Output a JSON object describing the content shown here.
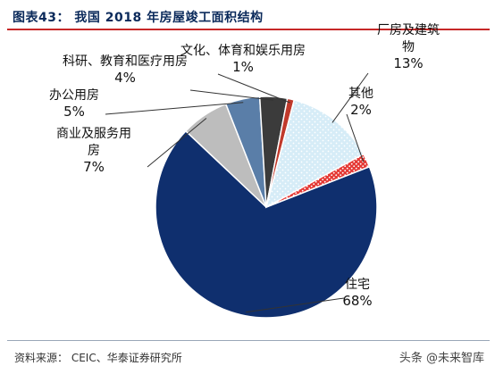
{
  "header": {
    "title": "图表43：   我国 2018 年房屋竣工面积结构"
  },
  "chart_data": {
    "type": "pie",
    "title": "我国 2018 年房屋竣工面积结构",
    "series": [
      {
        "name": "住宅",
        "label_lines": [
          "住宅"
        ],
        "value": 68,
        "pct": "68%",
        "color": "#0f2f6e",
        "pattern": "solid"
      },
      {
        "name": "商业及服务用房",
        "label_lines": [
          "商业及服务用",
          "房"
        ],
        "value": 7,
        "pct": "7%",
        "color": "#bdbdbd",
        "pattern": "solid"
      },
      {
        "name": "办公用房",
        "label_lines": [
          "办公用房"
        ],
        "value": 5,
        "pct": "5%",
        "color": "#5a7ea8",
        "pattern": "solid"
      },
      {
        "name": "科研、教育和医疗用房",
        "label_lines": [
          "科研、教育和医疗用房"
        ],
        "value": 4,
        "pct": "4%",
        "color": "#3b3b3b",
        "pattern": "solid"
      },
      {
        "name": "文化、体育和娱乐用房",
        "label_lines": [
          "文化、体育和娱乐用房"
        ],
        "value": 1,
        "pct": "1%",
        "color": "#c0392b",
        "pattern": "solid"
      },
      {
        "name": "厂房及建筑物",
        "label_lines": [
          "厂房及建筑",
          "物"
        ],
        "value": 13,
        "pct": "13%",
        "color": "#d6ecf7",
        "pattern": "dots-blue"
      },
      {
        "name": "其他",
        "label_lines": [
          "其他"
        ],
        "value": 2,
        "pct": "2%",
        "color": "#f4b9b9",
        "pattern": "dots-red"
      }
    ],
    "legend": "none",
    "data_labels": "outside-with-leader-lines"
  },
  "footer": {
    "source": "资料来源：  CEIC、华泰证券研究所",
    "watermark": "头条 @未来智库"
  }
}
